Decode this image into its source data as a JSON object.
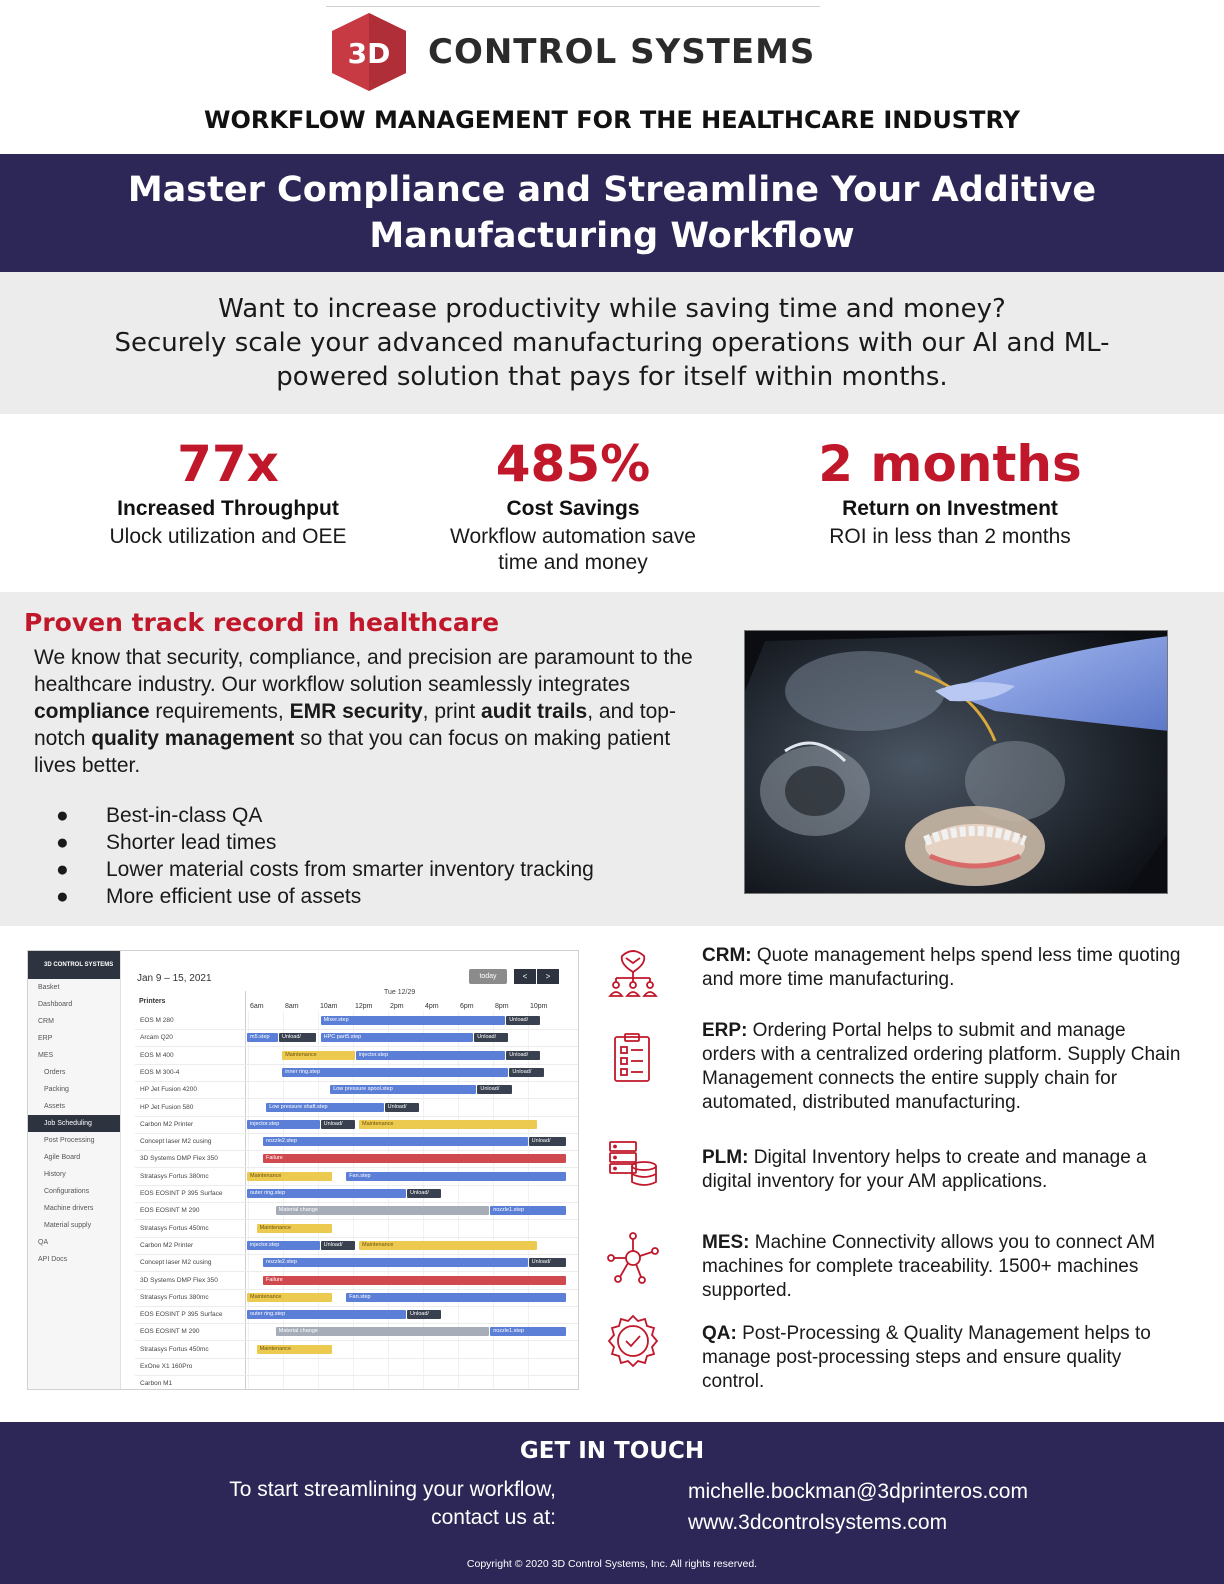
{
  "brand": {
    "logo_mark": "3D",
    "logo_text": "CONTROL SYSTEMS",
    "colors": {
      "brand_red": "#c1172a",
      "navy": "#2c2756",
      "light_gray": "#ececec"
    }
  },
  "subtitle": "WORKFLOW MANAGEMENT FOR THE HEALTHCARE INDUSTRY",
  "hero": {
    "title": "Master Compliance and Streamline Your Additive Manufacturing Workflow"
  },
  "intro": {
    "line1": "Want to increase productivity while saving time and money?",
    "line2": "Securely scale your advanced manufacturing operations with our AI and ML-powered solution that pays for itself within months."
  },
  "stats": [
    {
      "value": "77x",
      "label": "Increased Throughput",
      "desc": "Ulock utilization and OEE"
    },
    {
      "value": "485%",
      "label": "Cost Savings",
      "desc": "Workflow automation save time and money"
    },
    {
      "value": "2 months",
      "label": "Return on Investment",
      "desc": "ROI in less than 2 months"
    }
  ],
  "proven": {
    "title": "Proven track record in healthcare",
    "p1": "We know that security, compliance, and precision are paramount to the healthcare industry. Our workflow solution seamlessly integrates ",
    "b1": "compliance",
    "p2": " requirements, ",
    "b2": "EMR security",
    "p3": ", print ",
    "b3": "audit trails",
    "p4": ", and top-notch ",
    "b4": "quality management",
    "p5": " so that you can focus on making patient lives better.",
    "bullets": [
      "Best-in-class QA",
      "Shorter lead times",
      "Lower material costs from smarter inventory tracking",
      "More efficient use of assets"
    ]
  },
  "mockup": {
    "brand": "3D CONTROL SYSTEMS",
    "nav": [
      {
        "label": "Basket",
        "sub": false,
        "active": false
      },
      {
        "label": "Dashboard",
        "sub": false,
        "active": false
      },
      {
        "label": "CRM",
        "sub": false,
        "active": false
      },
      {
        "label": "ERP",
        "sub": false,
        "active": false
      },
      {
        "label": "MES",
        "sub": false,
        "active": false
      },
      {
        "label": "Orders",
        "sub": true,
        "active": false
      },
      {
        "label": "Packing",
        "sub": true,
        "active": false
      },
      {
        "label": "Assets",
        "sub": true,
        "active": false
      },
      {
        "label": "Job Scheduling",
        "sub": true,
        "active": true
      },
      {
        "label": "Post Processing",
        "sub": true,
        "active": false
      },
      {
        "label": "Agile Board",
        "sub": true,
        "active": false
      },
      {
        "label": "History",
        "sub": true,
        "active": false
      },
      {
        "label": "Configurations",
        "sub": true,
        "active": false
      },
      {
        "label": "Machine drivers",
        "sub": true,
        "active": false
      },
      {
        "label": "Material supply",
        "sub": true,
        "active": false
      },
      {
        "label": "QA",
        "sub": false,
        "active": false
      },
      {
        "label": "API Docs",
        "sub": false,
        "active": false
      }
    ],
    "date_range": "Jan 9 – 15, 2021",
    "today_label": "today",
    "prev_label": "<",
    "next_label": ">",
    "printers_header": "Printers",
    "day_header": "Tue 12/29",
    "ticks": [
      "6am",
      "8am",
      "10am",
      "12pm",
      "2pm",
      "4pm",
      "6pm",
      "8pm",
      "10pm"
    ],
    "rows": [
      {
        "name": "EOS M 280",
        "bars": [
          {
            "s": 0.23,
            "e": 0.81,
            "t": "Mixer.step",
            "c": "blue"
          },
          {
            "s": 0.81,
            "e": 0.92,
            "t": "Unload/",
            "c": "navy"
          }
        ]
      },
      {
        "name": "Arcam Q20",
        "bars": [
          {
            "s": 0.0,
            "e": 0.1,
            "t": "m5.step",
            "c": "blue"
          },
          {
            "s": 0.1,
            "e": 0.22,
            "t": "Unload/",
            "c": "navy"
          },
          {
            "s": 0.23,
            "e": 0.71,
            "t": "HPC part5.step",
            "c": "blue"
          },
          {
            "s": 0.71,
            "e": 0.82,
            "t": "Unload/",
            "c": "navy"
          }
        ]
      },
      {
        "name": "EOS M 400",
        "bars": [
          {
            "s": 0.11,
            "e": 0.34,
            "t": "Maintenance",
            "c": "yellow"
          },
          {
            "s": 0.34,
            "e": 0.81,
            "t": "injector.step",
            "c": "blue"
          },
          {
            "s": 0.81,
            "e": 0.92,
            "t": "Unload/",
            "c": "navy"
          }
        ]
      },
      {
        "name": "EOS M 300-4",
        "bars": [
          {
            "s": 0.11,
            "e": 0.82,
            "t": "inner ring.step",
            "c": "blue"
          },
          {
            "s": 0.82,
            "e": 0.93,
            "t": "Unload/",
            "c": "navy"
          }
        ]
      },
      {
        "name": "HP Jet Fusion 4200",
        "bars": [
          {
            "s": 0.26,
            "e": 0.72,
            "t": "Low pressure spool.step",
            "c": "blue"
          },
          {
            "s": 0.72,
            "e": 0.83,
            "t": "Unload/",
            "c": "navy"
          }
        ]
      },
      {
        "name": "HP Jet Fusion 580",
        "bars": [
          {
            "s": 0.06,
            "e": 0.43,
            "t": "Low pressure shaft.step",
            "c": "blue"
          },
          {
            "s": 0.43,
            "e": 0.54,
            "t": "Unload/",
            "c": "navy"
          }
        ]
      },
      {
        "name": "Carbon M2 Printer",
        "bars": [
          {
            "s": 0.0,
            "e": 0.23,
            "t": "injector.step",
            "c": "blue"
          },
          {
            "s": 0.23,
            "e": 0.34,
            "t": "Unload/",
            "c": "navy"
          },
          {
            "s": 0.35,
            "e": 0.91,
            "t": "Maintenance",
            "c": "yellow"
          }
        ]
      },
      {
        "name": "Concept laser M2 cusing",
        "bars": [
          {
            "s": 0.05,
            "e": 0.88,
            "t": "nozzle2.step",
            "c": "blue"
          },
          {
            "s": 0.88,
            "e": 1.0,
            "t": "Unload/",
            "c": "navy"
          }
        ]
      },
      {
        "name": "3D Systems DMP Flex 350",
        "bars": [
          {
            "s": 0.05,
            "e": 1.0,
            "t": "Failure",
            "c": "red"
          }
        ]
      },
      {
        "name": "Stratasys Fortus 380mc",
        "bars": [
          {
            "s": 0.0,
            "e": 0.27,
            "t": "Maintenance",
            "c": "yellow"
          },
          {
            "s": 0.31,
            "e": 1.0,
            "t": "Fan.step",
            "c": "blue"
          }
        ]
      },
      {
        "name": "EOS EOSINT P 395 Surface",
        "bars": [
          {
            "s": 0.0,
            "e": 0.5,
            "t": "outer ring.step",
            "c": "blue"
          },
          {
            "s": 0.5,
            "e": 0.61,
            "t": "Unload/",
            "c": "navy"
          }
        ]
      },
      {
        "name": "EOS EOSINT M 290",
        "bars": [
          {
            "s": 0.09,
            "e": 0.76,
            "t": "Material change",
            "c": "gray"
          },
          {
            "s": 0.76,
            "e": 1.0,
            "t": "nozzle1.step",
            "c": "blue"
          }
        ]
      },
      {
        "name": "Stratasys Fortus 450mc",
        "bars": [
          {
            "s": 0.03,
            "e": 0.27,
            "t": "Maintenance",
            "c": "yellow"
          }
        ]
      },
      {
        "name": "Carbon M2 Printer",
        "bars": [
          {
            "s": 0.0,
            "e": 0.23,
            "t": "injector.step",
            "c": "blue"
          },
          {
            "s": 0.23,
            "e": 0.34,
            "t": "Unload/",
            "c": "navy"
          },
          {
            "s": 0.35,
            "e": 0.91,
            "t": "Maintenance",
            "c": "yellow"
          }
        ]
      },
      {
        "name": "Concept laser M2 cusing",
        "bars": [
          {
            "s": 0.05,
            "e": 0.88,
            "t": "nozzle2.step",
            "c": "blue"
          },
          {
            "s": 0.88,
            "e": 1.0,
            "t": "Unload/",
            "c": "navy"
          }
        ]
      },
      {
        "name": "3D Systems DMP Flex 350",
        "bars": [
          {
            "s": 0.05,
            "e": 1.0,
            "t": "Failure",
            "c": "red"
          }
        ]
      },
      {
        "name": "Stratasys Fortus 380mc",
        "bars": [
          {
            "s": 0.0,
            "e": 0.27,
            "t": "Maintenance",
            "c": "yellow"
          },
          {
            "s": 0.31,
            "e": 1.0,
            "t": "Fan.step",
            "c": "blue"
          }
        ]
      },
      {
        "name": "EOS EOSINT P 395 Surface",
        "bars": [
          {
            "s": 0.0,
            "e": 0.5,
            "t": "outer ring.step",
            "c": "blue"
          },
          {
            "s": 0.5,
            "e": 0.61,
            "t": "Unload/",
            "c": "navy"
          }
        ]
      },
      {
        "name": "EOS EOSINT M 290",
        "bars": [
          {
            "s": 0.09,
            "e": 0.76,
            "t": "Material change",
            "c": "gray"
          },
          {
            "s": 0.76,
            "e": 1.0,
            "t": "nozzle1.step",
            "c": "blue"
          }
        ]
      },
      {
        "name": "Stratasys Fortus 450mc",
        "bars": [
          {
            "s": 0.03,
            "e": 0.27,
            "t": "Maintenance",
            "c": "yellow"
          }
        ]
      },
      {
        "name": "ExOne X1 160Pro",
        "bars": []
      },
      {
        "name": "Carbon M1",
        "bars": []
      }
    ],
    "bar_colors": {
      "blue": "#5b7fd6",
      "navy": "#39404f",
      "yellow": "#ecc94f",
      "red": "#d0494f",
      "gray": "#a6adb9"
    }
  },
  "features": [
    {
      "icon": "handshake-network-icon",
      "key": "CRM:",
      "text": " Quote management helps spend less time quoting and more time manufacturing."
    },
    {
      "icon": "clipboard-checklist-icon",
      "key": "ERP:",
      "text": " Ordering Portal helps to submit and manage orders with a centralized ordering platform. Supply Chain Management connects the entire supply chain for automated, distributed manufacturing."
    },
    {
      "icon": "server-database-icon",
      "key": "PLM:",
      "text": " Digital Inventory helps to create and manage a digital inventory for your AM applications."
    },
    {
      "icon": "network-nodes-icon",
      "key": "MES:",
      "text": " Machine Connectivity allows you to connect AM machines for complete traceability. 1500+ machines supported."
    },
    {
      "icon": "quality-badge-check-icon",
      "key": "QA:",
      "text": " Post-Processing & Quality Management helps to manage post-processing steps and ensure quality control."
    }
  ],
  "footer": {
    "title": "GET IN TOUCH",
    "cta_line1": "To start streamlining your workflow,",
    "cta_line2": "contact us at:",
    "email": "michelle.bockman@3dprinteros.com",
    "website": "www.3dcontrolsystems.com",
    "copyright": "Copyright © 2020 3D Control Systems, Inc. All rights reserved."
  }
}
